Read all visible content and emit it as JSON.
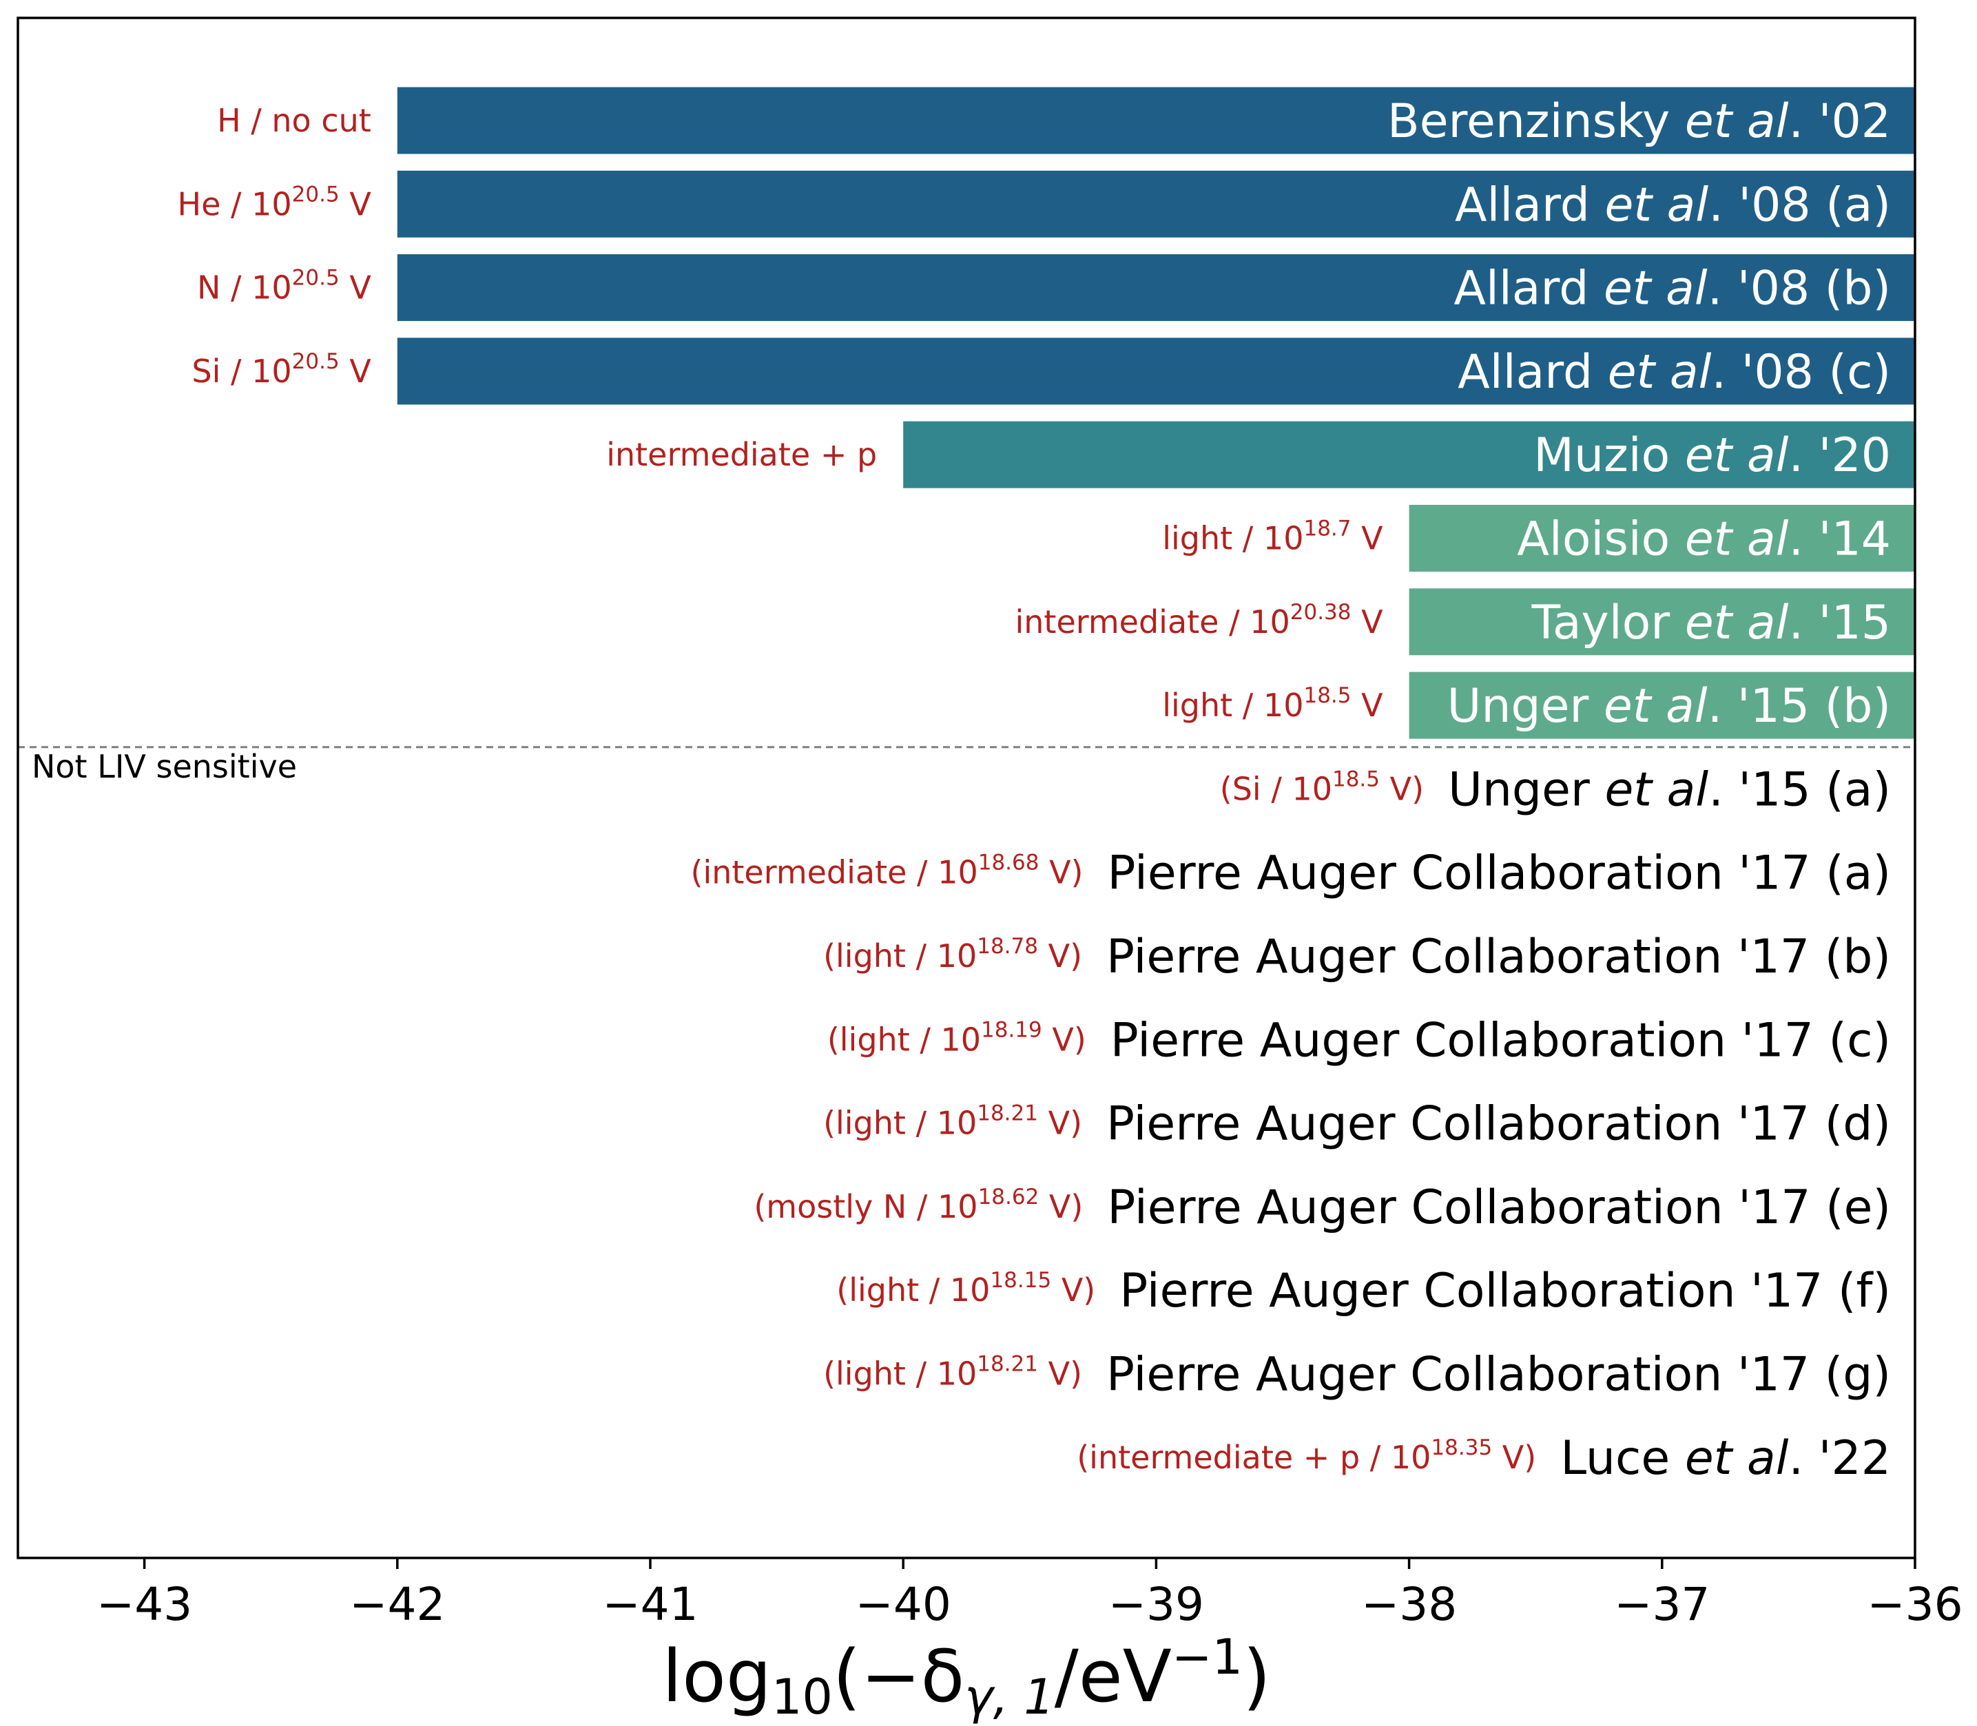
{
  "chart_data": {
    "type": "bar",
    "orientation": "horizontal",
    "xlabel": "log10(−δγ,1/eV−1)",
    "xlabel_parts": {
      "main": "log",
      "sub_10": "10",
      "open": "(−δ",
      "sub_gamma": "γ, 1",
      "middle": "/eV",
      "sup": "−1",
      "close": ")"
    },
    "xlim": [
      -43.5,
      -36
    ],
    "xticks": [
      -43,
      -42,
      -41,
      -40,
      -39,
      -38,
      -37,
      -36
    ],
    "xtick_labels": [
      "−43",
      "−42",
      "−41",
      "−40",
      "−39",
      "−38",
      "−37",
      "−36"
    ],
    "separator_label": "Not LIV sensitive",
    "colors": {
      "dark_blue": "#1f5f87",
      "teal": "#33868d",
      "green": "#5eaa8c",
      "annotation_red": "#b2211f"
    },
    "rows": [
      {
        "ref_pre": "Berenzinsky ",
        "ref_italic": "et al",
        "ref_post": ". '02",
        "note_pre": "H / no cut",
        "note_exp": "",
        "note_post": "",
        "start": -42,
        "end": -36,
        "color": "dark_blue",
        "liv": true
      },
      {
        "ref_pre": "Allard ",
        "ref_italic": "et al",
        "ref_post": ". '08 (a)",
        "note_pre": "He / 10",
        "note_exp": "20.5",
        "note_post": " V",
        "start": -42,
        "end": -36,
        "color": "dark_blue",
        "liv": true
      },
      {
        "ref_pre": "Allard ",
        "ref_italic": "et al",
        "ref_post": ". '08 (b)",
        "note_pre": "N / 10",
        "note_exp": "20.5",
        "note_post": " V",
        "start": -42,
        "end": -36,
        "color": "dark_blue",
        "liv": true
      },
      {
        "ref_pre": "Allard ",
        "ref_italic": "et al",
        "ref_post": ". '08 (c)",
        "note_pre": "Si / 10",
        "note_exp": "20.5",
        "note_post": " V",
        "start": -42,
        "end": -36,
        "color": "dark_blue",
        "liv": true
      },
      {
        "ref_pre": "Muzio ",
        "ref_italic": "et al",
        "ref_post": ". '20",
        "note_pre": "intermediate + p",
        "note_exp": "",
        "note_post": "",
        "start": -40,
        "end": -36,
        "color": "teal",
        "liv": true
      },
      {
        "ref_pre": "Aloisio ",
        "ref_italic": "et al",
        "ref_post": ". '14",
        "note_pre": "light / 10",
        "note_exp": "18.7",
        "note_post": " V",
        "start": -38,
        "end": -36,
        "color": "green",
        "liv": true
      },
      {
        "ref_pre": "Taylor ",
        "ref_italic": "et al",
        "ref_post": ". '15",
        "note_pre": "intermediate / 10",
        "note_exp": "20.38",
        "note_post": " V",
        "start": -38,
        "end": -36,
        "color": "green",
        "liv": true
      },
      {
        "ref_pre": "Unger ",
        "ref_italic": "et al",
        "ref_post": ". '15 (b)",
        "note_pre": "light / 10",
        "note_exp": "18.5",
        "note_post": " V",
        "start": -38,
        "end": -36,
        "color": "green",
        "liv": true
      },
      {
        "ref_pre": "Unger ",
        "ref_italic": "et al",
        "ref_post": ". '15 (a)",
        "note_pre": "(Si / 10",
        "note_exp": "18.5",
        "note_post": " V)",
        "start": null,
        "end": null,
        "color": null,
        "liv": false
      },
      {
        "ref_pre": "Pierre Auger Collaboration '17 (a)",
        "ref_italic": "",
        "ref_post": "",
        "note_pre": "(intermediate / 10",
        "note_exp": "18.68",
        "note_post": " V)",
        "start": null,
        "end": null,
        "color": null,
        "liv": false
      },
      {
        "ref_pre": "Pierre Auger Collaboration '17 (b)",
        "ref_italic": "",
        "ref_post": "",
        "note_pre": "(light / 10",
        "note_exp": "18.78",
        "note_post": " V)",
        "start": null,
        "end": null,
        "color": null,
        "liv": false
      },
      {
        "ref_pre": "Pierre Auger Collaboration '17 (c)",
        "ref_italic": "",
        "ref_post": "",
        "note_pre": "(light / 10",
        "note_exp": "18.19",
        "note_post": " V)",
        "start": null,
        "end": null,
        "color": null,
        "liv": false
      },
      {
        "ref_pre": "Pierre Auger Collaboration '17 (d)",
        "ref_italic": "",
        "ref_post": "",
        "note_pre": "(light / 10",
        "note_exp": "18.21",
        "note_post": " V)",
        "start": null,
        "end": null,
        "color": null,
        "liv": false
      },
      {
        "ref_pre": "Pierre Auger Collaboration '17 (e)",
        "ref_italic": "",
        "ref_post": "",
        "note_pre": "(mostly N / 10",
        "note_exp": "18.62",
        "note_post": " V)",
        "start": null,
        "end": null,
        "color": null,
        "liv": false
      },
      {
        "ref_pre": "Pierre Auger Collaboration '17 (f)",
        "ref_italic": "",
        "ref_post": "",
        "note_pre": "(light / 10",
        "note_exp": "18.15",
        "note_post": " V)",
        "start": null,
        "end": null,
        "color": null,
        "liv": false
      },
      {
        "ref_pre": "Pierre Auger Collaboration '17 (g)",
        "ref_italic": "",
        "ref_post": "",
        "note_pre": "(light / 10",
        "note_exp": "18.21",
        "note_post": " V)",
        "start": null,
        "end": null,
        "color": null,
        "liv": false
      },
      {
        "ref_pre": "Luce ",
        "ref_italic": "et al",
        "ref_post": ". '22",
        "note_pre": "(intermediate + p / 10",
        "note_exp": "18.35",
        "note_post": " V)",
        "start": null,
        "end": null,
        "color": null,
        "liv": false
      }
    ]
  }
}
